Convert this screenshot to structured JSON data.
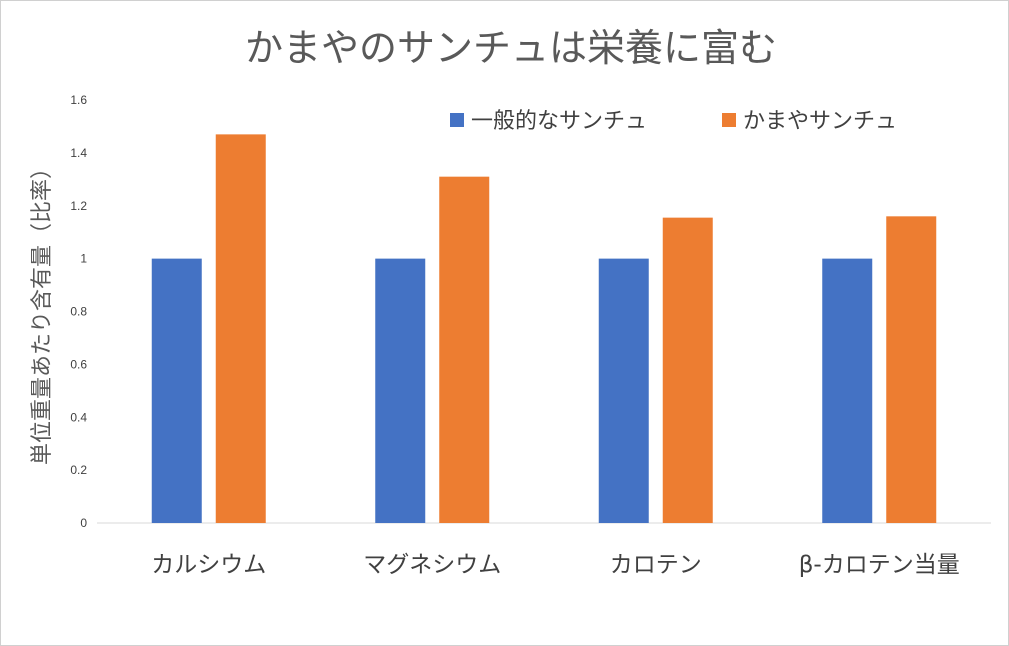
{
  "chart_data": {
    "type": "bar",
    "title": "かまやのサンチュは栄養に富む",
    "xlabel": "",
    "ylabel": "単位重量あたり含有量（比率）",
    "ylim": [
      0,
      1.6
    ],
    "yticks": [
      "0",
      "0.2",
      "0.4",
      "0.6",
      "0.8",
      "1",
      "1.2",
      "1.4",
      "1.6"
    ],
    "categories": [
      "カルシウム",
      "マグネシウム",
      "カロテン",
      "β-カロテン当量"
    ],
    "series": [
      {
        "name": "一般的なサンチュ",
        "color": "#4472C4",
        "values": [
          1.0,
          1.0,
          1.0,
          1.0
        ]
      },
      {
        "name": "かまやサンチュ",
        "color": "#ED7D31",
        "values": [
          1.47,
          1.31,
          1.155,
          1.16
        ]
      }
    ],
    "legend_position": "top-right",
    "grid": false
  }
}
